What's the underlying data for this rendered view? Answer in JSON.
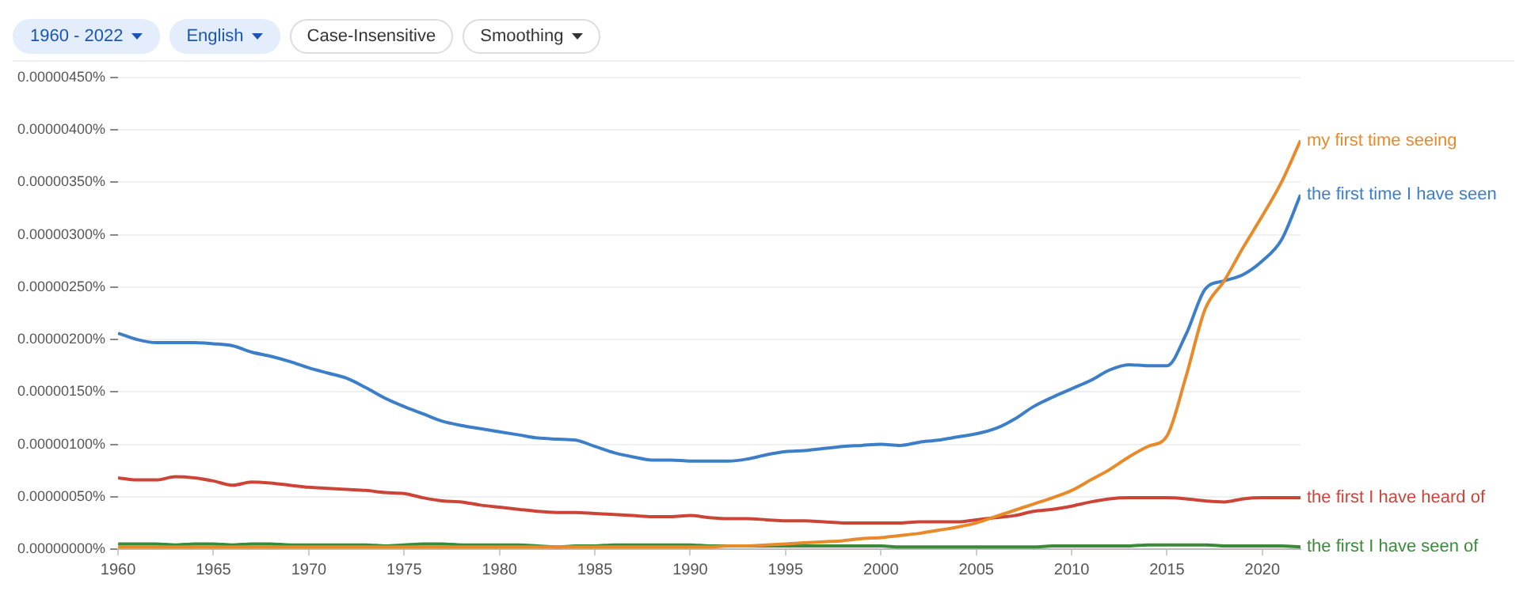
{
  "chart_data": {
    "type": "line",
    "annotations": [
      "1960 - 2022",
      "English",
      "Case-Insensitive",
      "Smoothing"
    ],
    "x": [
      1960,
      1961,
      1962,
      1963,
      1964,
      1965,
      1966,
      1967,
      1968,
      1969,
      1970,
      1971,
      1972,
      1973,
      1974,
      1975,
      1976,
      1977,
      1978,
      1979,
      1980,
      1981,
      1982,
      1983,
      1984,
      1985,
      1986,
      1987,
      1988,
      1989,
      1990,
      1991,
      1992,
      1993,
      1994,
      1995,
      1996,
      1997,
      1998,
      1999,
      2000,
      2001,
      2002,
      2003,
      2004,
      2005,
      2006,
      2007,
      2008,
      2009,
      2010,
      2011,
      2012,
      2013,
      2014,
      2015,
      2016,
      2017,
      2018,
      2019,
      2020,
      2021,
      2022
    ],
    "xlim": [
      1960,
      2022
    ],
    "xticks": [
      1960,
      1965,
      1970,
      1975,
      1980,
      1985,
      1990,
      1995,
      2000,
      2005,
      2010,
      2015,
      2020
    ],
    "ylim": [
      0,
      4.5e-06
    ],
    "yticks": [
      {
        "value": 0,
        "label": "0.00000000%"
      },
      {
        "value": 5e-07,
        "label": "0.00000050%"
      },
      {
        "value": 1e-06,
        "label": "0.00000100%"
      },
      {
        "value": 1.5e-06,
        "label": "0.00000150%"
      },
      {
        "value": 2e-06,
        "label": "0.00000200%"
      },
      {
        "value": 2.5e-06,
        "label": "0.00000250%"
      },
      {
        "value": 3e-06,
        "label": "0.00000300%"
      },
      {
        "value": 3.5e-06,
        "label": "0.00000350%"
      },
      {
        "value": 4e-06,
        "label": "0.00000400%"
      },
      {
        "value": 4.5e-06,
        "label": "0.00000450%"
      }
    ],
    "grid": "y",
    "legend": false,
    "marker": "none",
    "line_style": "solid",
    "series": [
      {
        "name": "my first time seeing",
        "color": "#e8892a",
        "values": [
          2e-08,
          2e-08,
          2e-08,
          2e-08,
          2e-08,
          2e-08,
          2e-08,
          2e-08,
          2e-08,
          2e-08,
          2e-08,
          2e-08,
          2e-08,
          2e-08,
          2e-08,
          2e-08,
          2e-08,
          2e-08,
          2e-08,
          2e-08,
          2e-08,
          2e-08,
          2e-08,
          2e-08,
          2e-08,
          2e-08,
          2e-08,
          2e-08,
          2e-08,
          2e-08,
          2e-08,
          2e-08,
          3e-08,
          3e-08,
          4e-08,
          5e-08,
          6e-08,
          7e-08,
          8e-08,
          1e-07,
          1.1e-07,
          1.3e-07,
          1.5e-07,
          1.8e-07,
          2.1e-07,
          2.5e-07,
          3.1e-07,
          3.7e-07,
          4.3e-07,
          4.9e-07,
          5.6e-07,
          6.6e-07,
          7.6e-07,
          8.8e-07,
          9.8e-07,
          1.08e-06,
          1.65e-06,
          2.29e-06,
          2.56e-06,
          2.88e-06,
          3.18e-06,
          3.5e-06,
          3.9e-06
        ]
      },
      {
        "name": "the first time I have seen",
        "color": "#3d7ec9",
        "values": [
          2.06e-06,
          2e-06,
          1.97e-06,
          1.97e-06,
          1.97e-06,
          1.96e-06,
          1.94e-06,
          1.88e-06,
          1.84e-06,
          1.79e-06,
          1.73e-06,
          1.68e-06,
          1.63e-06,
          1.54e-06,
          1.44e-06,
          1.36e-06,
          1.29e-06,
          1.22e-06,
          1.18e-06,
          1.15e-06,
          1.12e-06,
          1.09e-06,
          1.06e-06,
          1.05e-06,
          1.04e-06,
          9.8e-07,
          9.2e-07,
          8.8e-07,
          8.5e-07,
          8.5e-07,
          8.4e-07,
          8.4e-07,
          8.4e-07,
          8.6e-07,
          9e-07,
          9.3e-07,
          9.4e-07,
          9.6e-07,
          9.8e-07,
          9.9e-07,
          1e-06,
          9.9e-07,
          1.02e-06,
          1.04e-06,
          1.07e-06,
          1.1e-06,
          1.15e-06,
          1.24e-06,
          1.36e-06,
          1.45e-06,
          1.53e-06,
          1.61e-06,
          1.71e-06,
          1.76e-06,
          1.75e-06,
          1.75e-06,
          2.05e-06,
          2.48e-06,
          2.56e-06,
          2.62e-06,
          2.75e-06,
          2.95e-06,
          3.38e-06
        ]
      },
      {
        "name": "the first I have heard of",
        "color": "#cc4438",
        "values": [
          6.8e-07,
          6.6e-07,
          6.6e-07,
          6.9e-07,
          6.8e-07,
          6.5e-07,
          6.1e-07,
          6.4e-07,
          6.3e-07,
          6.1e-07,
          5.9e-07,
          5.8e-07,
          5.7e-07,
          5.6e-07,
          5.4e-07,
          5.3e-07,
          4.9e-07,
          4.6e-07,
          4.5e-07,
          4.2e-07,
          4e-07,
          3.8e-07,
          3.6e-07,
          3.5e-07,
          3.5e-07,
          3.4e-07,
          3.3e-07,
          3.2e-07,
          3.1e-07,
          3.1e-07,
          3.2e-07,
          3e-07,
          2.9e-07,
          2.9e-07,
          2.8e-07,
          2.7e-07,
          2.7e-07,
          2.6e-07,
          2.5e-07,
          2.5e-07,
          2.5e-07,
          2.5e-07,
          2.6e-07,
          2.6e-07,
          2.6e-07,
          2.8e-07,
          3e-07,
          3.2e-07,
          3.6e-07,
          3.8e-07,
          4.1e-07,
          4.5e-07,
          4.8e-07,
          4.9e-07,
          4.9e-07,
          4.9e-07,
          4.8e-07,
          4.6e-07,
          4.5e-07,
          4.8e-07,
          4.9e-07,
          4.9e-07,
          4.9e-07
        ]
      },
      {
        "name": "the first I have seen of",
        "color": "#3a8a3a",
        "values": [
          5e-08,
          5e-08,
          5e-08,
          4e-08,
          5e-08,
          5e-08,
          4e-08,
          5e-08,
          5e-08,
          4e-08,
          4e-08,
          4e-08,
          4e-08,
          4e-08,
          3e-08,
          4e-08,
          5e-08,
          5e-08,
          4e-08,
          4e-08,
          4e-08,
          4e-08,
          3e-08,
          2e-08,
          3e-08,
          3e-08,
          4e-08,
          4e-08,
          4e-08,
          4e-08,
          4e-08,
          3e-08,
          3e-08,
          3e-08,
          3e-08,
          3e-08,
          3e-08,
          3e-08,
          3e-08,
          3e-08,
          3e-08,
          2e-08,
          2e-08,
          2e-08,
          2e-08,
          2e-08,
          2e-08,
          2e-08,
          2e-08,
          3e-08,
          3e-08,
          3e-08,
          3e-08,
          3e-08,
          4e-08,
          4e-08,
          4e-08,
          4e-08,
          3e-08,
          3e-08,
          3e-08,
          3e-08,
          2e-08
        ]
      }
    ]
  }
}
